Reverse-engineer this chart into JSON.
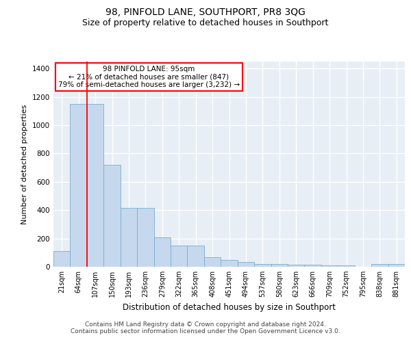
{
  "title": "98, PINFOLD LANE, SOUTHPORT, PR8 3QG",
  "subtitle": "Size of property relative to detached houses in Southport",
  "xlabel": "Distribution of detached houses by size in Southport",
  "ylabel": "Number of detached properties",
  "footer_line1": "Contains HM Land Registry data © Crown copyright and database right 2024.",
  "footer_line2": "Contains public sector information licensed under the Open Government Licence v3.0.",
  "bar_labels": [
    "21sqm",
    "64sqm",
    "107sqm",
    "150sqm",
    "193sqm",
    "236sqm",
    "279sqm",
    "322sqm",
    "365sqm",
    "408sqm",
    "451sqm",
    "494sqm",
    "537sqm",
    "580sqm",
    "623sqm",
    "666sqm",
    "709sqm",
    "752sqm",
    "795sqm",
    "838sqm",
    "881sqm"
  ],
  "bar_values": [
    110,
    1150,
    1150,
    720,
    415,
    415,
    210,
    150,
    150,
    70,
    50,
    35,
    20,
    20,
    15,
    15,
    10,
    10,
    0,
    18,
    18
  ],
  "bar_color": "#c5d8ed",
  "bar_edge_color": "#7aaecc",
  "annotation_text": "98 PINFOLD LANE: 95sqm\n← 21% of detached houses are smaller (847)\n79% of semi-detached houses are larger (3,232) →",
  "annotation_box_facecolor": "white",
  "annotation_box_edgecolor": "red",
  "vline_x": 1.5,
  "vline_color": "red",
  "ylim": [
    0,
    1450
  ],
  "yticks": [
    0,
    200,
    400,
    600,
    800,
    1000,
    1200,
    1400
  ],
  "plot_bg_color": "#e8eef5",
  "grid_color": "white",
  "title_fontsize": 10,
  "subtitle_fontsize": 9,
  "ylabel_fontsize": 8,
  "xlabel_fontsize": 8.5,
  "tick_fontsize": 7,
  "annotation_fontsize": 7.5,
  "footer_fontsize": 6.5
}
